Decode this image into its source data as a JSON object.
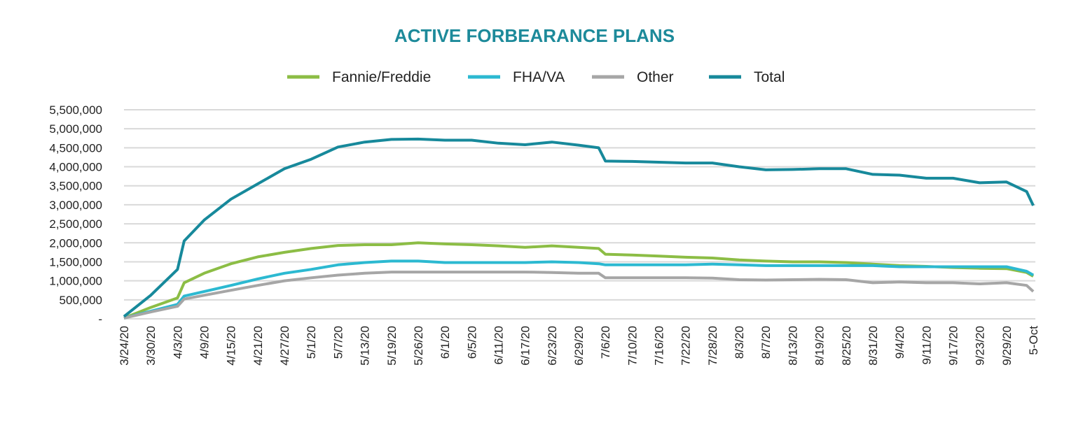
{
  "chart_data": {
    "type": "line",
    "title": "ACTIVE FORBEARANCE PLANS",
    "legend_position": "top",
    "grid": "horizontal",
    "xlabel": "",
    "ylabel": "",
    "ylim": [
      0,
      5500000
    ],
    "y_ticks": [
      "-",
      "500,000",
      "1,000,000",
      "1,500,000",
      "2,000,000",
      "2,500,000",
      "3,000,000",
      "3,500,000",
      "4,000,000",
      "4,500,000",
      "5,000,000",
      "5,500,000"
    ],
    "x_ticks": [
      "3/24/20",
      "3/30/20",
      "4/3/20",
      "4/9/20",
      "4/15/20",
      "4/21/20",
      "4/27/20",
      "5/1/20",
      "5/7/20",
      "5/13/20",
      "5/19/20",
      "5/26/20",
      "6/1/20",
      "6/5/20",
      "6/11/20",
      "6/17/20",
      "6/23/20",
      "6/29/20",
      "7/6/20",
      "7/10/20",
      "7/16/20",
      "7/22/20",
      "7/28/20",
      "8/3/20",
      "8/7/20",
      "8/13/20",
      "8/19/20",
      "8/25/20",
      "8/31/20",
      "9/4/20",
      "9/11/20",
      "9/17/20",
      "9/23/20",
      "9/29/20",
      "5-Oct"
    ],
    "x": [
      "3/24",
      "3/30",
      "4/3",
      "4/6",
      "4/9",
      "4/15",
      "4/21",
      "4/27",
      "5/1",
      "5/7",
      "5/13",
      "5/19",
      "5/26",
      "6/1",
      "6/5",
      "6/11",
      "6/17",
      "6/23",
      "6/29",
      "7/2",
      "7/6",
      "7/10",
      "7/16",
      "7/22",
      "7/28",
      "8/3",
      "8/7",
      "8/13",
      "8/19",
      "8/25",
      "8/31",
      "9/4",
      "9/11",
      "9/17",
      "9/23",
      "9/29",
      "10/2",
      "10/5"
    ],
    "series": [
      {
        "name": "Fannie/Freddie",
        "color": "#8cbd45",
        "values": [
          20000,
          300000,
          550000,
          950000,
          1200000,
          1450000,
          1630000,
          1750000,
          1850000,
          1930000,
          1950000,
          1950000,
          2000000,
          1970000,
          1950000,
          1920000,
          1880000,
          1920000,
          1880000,
          1850000,
          1700000,
          1680000,
          1650000,
          1620000,
          1600000,
          1550000,
          1520000,
          1500000,
          1500000,
          1480000,
          1440000,
          1400000,
          1380000,
          1350000,
          1330000,
          1320000,
          1220000,
          1120000
        ]
      },
      {
        "name": "FHA/VA",
        "color": "#2cb9d1",
        "values": [
          20000,
          200000,
          380000,
          600000,
          720000,
          880000,
          1050000,
          1200000,
          1300000,
          1420000,
          1480000,
          1520000,
          1520000,
          1480000,
          1480000,
          1480000,
          1480000,
          1500000,
          1480000,
          1450000,
          1420000,
          1420000,
          1420000,
          1420000,
          1440000,
          1420000,
          1400000,
          1400000,
          1400000,
          1400000,
          1400000,
          1370000,
          1370000,
          1370000,
          1370000,
          1370000,
          1250000,
          1150000
        ]
      },
      {
        "name": "Other",
        "color": "#a6a6a6",
        "values": [
          20000,
          180000,
          330000,
          520000,
          620000,
          750000,
          880000,
          1000000,
          1080000,
          1150000,
          1200000,
          1230000,
          1230000,
          1230000,
          1230000,
          1230000,
          1230000,
          1220000,
          1200000,
          1200000,
          1080000,
          1080000,
          1080000,
          1080000,
          1070000,
          1030000,
          1020000,
          1030000,
          1040000,
          1030000,
          950000,
          970000,
          950000,
          950000,
          920000,
          950000,
          880000,
          720000
        ]
      },
      {
        "name": "Total",
        "color": "#17899b",
        "values": [
          60000,
          620000,
          1300000,
          2050000,
          2600000,
          3150000,
          3550000,
          3950000,
          4200000,
          4520000,
          4650000,
          4720000,
          4730000,
          4700000,
          4700000,
          4620000,
          4580000,
          4650000,
          4570000,
          4500000,
          4150000,
          4140000,
          4120000,
          4100000,
          4100000,
          4000000,
          3920000,
          3930000,
          3950000,
          3950000,
          3800000,
          3780000,
          3700000,
          3700000,
          3580000,
          3600000,
          3350000,
          2980000
        ]
      }
    ]
  },
  "colors": {
    "title": "#1d8a9a",
    "grid": "#d9d9d9",
    "text": "#222222"
  }
}
